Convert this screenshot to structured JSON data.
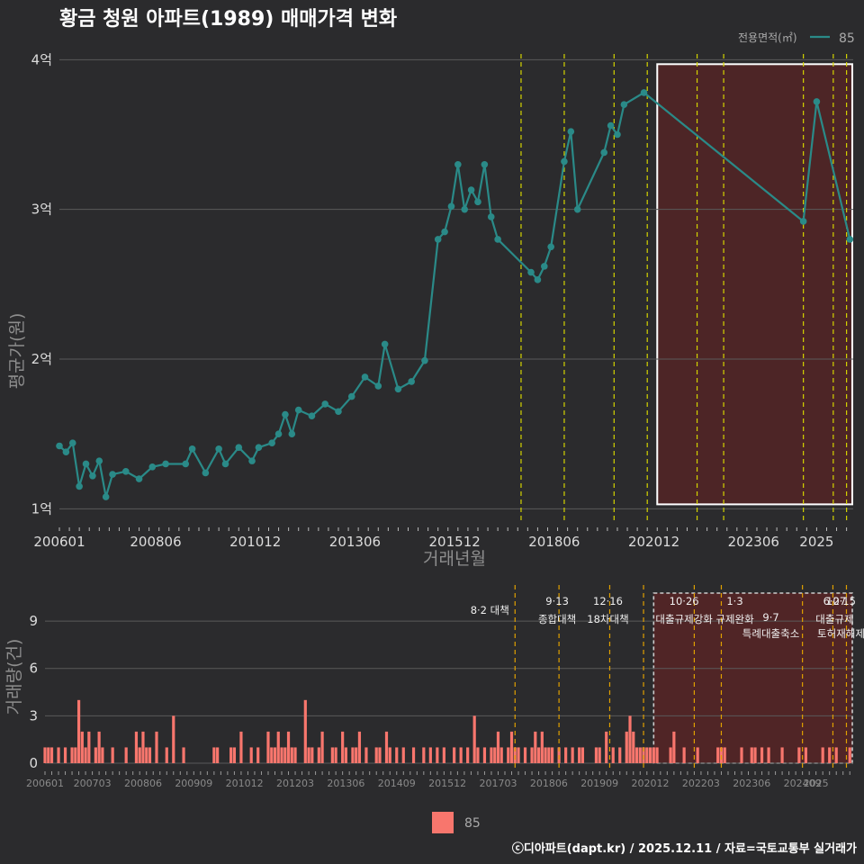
{
  "title": "황금 청원 아파트(1989) 매매가격 변화",
  "footer": "ⓒ디아파트(dapt.kr) / 2025.12.11 / 자료=국토교통부 실거래가",
  "colors": {
    "background": "#2b2b2d",
    "price_line": "#2a8a88",
    "volume_bar": "#f8766d",
    "policy_line_top": "#d4d400",
    "policy_line_bottom": "#e0a000",
    "highlight_fill": "#5a2424",
    "grid": "#5a5a5a"
  },
  "chart_data": [
    {
      "type": "line",
      "title": "황금 청원 아파트(1989) 매매가격 변화",
      "xlabel": "거래년월",
      "ylabel": "평균가(원)",
      "ylim": [
        0.9,
        4.05
      ],
      "x_range": [
        "2006-01",
        "2025-12"
      ],
      "x_ticks": [
        "200601",
        "200806",
        "201012",
        "201306",
        "201512",
        "201806",
        "202012",
        "202306",
        "2025"
      ],
      "y_ticks": [
        {
          "value": 1,
          "label": "1억"
        },
        {
          "value": 2,
          "label": "2억"
        },
        {
          "value": 3,
          "label": "3억"
        },
        {
          "value": 4,
          "label": "4억"
        }
      ],
      "legend": {
        "title": "전용면적(㎡)",
        "entries": [
          "85"
        ],
        "position": "top-right"
      },
      "policy_dates": [
        "2017-08",
        "2018-09",
        "2019-12",
        "2020-10",
        "2022-01",
        "2022-09",
        "2024-09",
        "2025-06",
        "2025-10"
      ],
      "highlight_range": [
        "2021-01",
        "2025-12"
      ],
      "series": [
        {
          "name": "85",
          "points": [
            [
              "2006-01",
              1.42
            ],
            [
              "2006-03",
              1.38
            ],
            [
              "2006-05",
              1.44
            ],
            [
              "2006-07",
              1.15
            ],
            [
              "2006-09",
              1.3
            ],
            [
              "2006-11",
              1.22
            ],
            [
              "2007-01",
              1.32
            ],
            [
              "2007-03",
              1.08
            ],
            [
              "2007-05",
              1.23
            ],
            [
              "2007-09",
              1.25
            ],
            [
              "2008-01",
              1.2
            ],
            [
              "2008-05",
              1.28
            ],
            [
              "2008-09",
              1.3
            ],
            [
              "2009-03",
              1.3
            ],
            [
              "2009-05",
              1.4
            ],
            [
              "2009-09",
              1.24
            ],
            [
              "2010-01",
              1.4
            ],
            [
              "2010-03",
              1.3
            ],
            [
              "2010-07",
              1.41
            ],
            [
              "2010-11",
              1.32
            ],
            [
              "2011-01",
              1.41
            ],
            [
              "2011-05",
              1.44
            ],
            [
              "2011-07",
              1.5
            ],
            [
              "2011-09",
              1.63
            ],
            [
              "2011-11",
              1.5
            ],
            [
              "2012-01",
              1.66
            ],
            [
              "2012-05",
              1.62
            ],
            [
              "2012-09",
              1.7
            ],
            [
              "2013-01",
              1.65
            ],
            [
              "2013-05",
              1.75
            ],
            [
              "2013-09",
              1.88
            ],
            [
              "2014-01",
              1.82
            ],
            [
              "2014-03",
              2.1
            ],
            [
              "2014-07",
              1.8
            ],
            [
              "2014-11",
              1.85
            ],
            [
              "2015-03",
              1.99
            ],
            [
              "2015-07",
              2.8
            ],
            [
              "2015-09",
              2.85
            ],
            [
              "2015-11",
              3.02
            ],
            [
              "2016-01",
              3.3
            ],
            [
              "2016-03",
              3.0
            ],
            [
              "2016-05",
              3.13
            ],
            [
              "2016-07",
              3.05
            ],
            [
              "2016-09",
              3.3
            ],
            [
              "2016-11",
              2.95
            ],
            [
              "2017-01",
              2.8
            ],
            [
              "2017-11",
              2.58
            ],
            [
              "2018-01",
              2.53
            ],
            [
              "2018-03",
              2.62
            ],
            [
              "2018-05",
              2.75
            ],
            [
              "2018-09",
              3.32
            ],
            [
              "2018-11",
              3.52
            ],
            [
              "2019-01",
              3.0
            ],
            [
              "2019-09",
              3.38
            ],
            [
              "2019-11",
              3.56
            ],
            [
              "2020-01",
              3.5
            ],
            [
              "2020-03",
              3.7
            ],
            [
              "2020-09",
              3.78
            ],
            [
              "2024-09",
              2.92
            ],
            [
              "2025-01",
              3.72
            ],
            [
              "2025-11",
              2.8
            ]
          ]
        }
      ]
    },
    {
      "type": "bar",
      "xlabel": "",
      "ylabel": "거래량(건)",
      "ylim": [
        0,
        11
      ],
      "x_range": [
        "2006-01",
        "2025-12"
      ],
      "x_ticks": [
        "200601",
        "200703",
        "200806",
        "200909",
        "201012",
        "201203",
        "201306",
        "201409",
        "201512",
        "201703",
        "201806",
        "201909",
        "202012",
        "202203",
        "202306",
        "202409",
        "2025"
      ],
      "y_ticks": [
        0,
        3,
        6,
        9
      ],
      "legend": {
        "entries": [
          "85"
        ],
        "position": "bottom"
      },
      "highlight_range": [
        "2021-01",
        "2025-12"
      ],
      "series": [
        {
          "name": "85",
          "bars": [
            [
              "2006-01",
              1
            ],
            [
              "2006-02",
              1
            ],
            [
              "2006-03",
              1
            ],
            [
              "2006-05",
              1
            ],
            [
              "2006-07",
              1
            ],
            [
              "2006-09",
              1
            ],
            [
              "2006-10",
              1
            ],
            [
              "2006-11",
              4
            ],
            [
              "2006-12",
              2
            ],
            [
              "2007-01",
              1
            ],
            [
              "2007-02",
              2
            ],
            [
              "2007-04",
              1
            ],
            [
              "2007-05",
              2
            ],
            [
              "2007-06",
              1
            ],
            [
              "2007-09",
              1
            ],
            [
              "2008-01",
              1
            ],
            [
              "2008-04",
              2
            ],
            [
              "2008-05",
              1
            ],
            [
              "2008-06",
              2
            ],
            [
              "2008-07",
              1
            ],
            [
              "2008-08",
              1
            ],
            [
              "2008-10",
              2
            ],
            [
              "2009-01",
              1
            ],
            [
              "2009-03",
              3
            ],
            [
              "2009-06",
              1
            ],
            [
              "2010-03",
              1
            ],
            [
              "2010-04",
              1
            ],
            [
              "2010-08",
              1
            ],
            [
              "2010-09",
              1
            ],
            [
              "2010-11",
              2
            ],
            [
              "2011-02",
              1
            ],
            [
              "2011-04",
              1
            ],
            [
              "2011-07",
              2
            ],
            [
              "2011-08",
              1
            ],
            [
              "2011-09",
              1
            ],
            [
              "2011-10",
              2
            ],
            [
              "2011-11",
              1
            ],
            [
              "2011-12",
              1
            ],
            [
              "2012-01",
              2
            ],
            [
              "2012-02",
              1
            ],
            [
              "2012-03",
              1
            ],
            [
              "2012-06",
              4
            ],
            [
              "2012-07",
              1
            ],
            [
              "2012-08",
              1
            ],
            [
              "2012-10",
              1
            ],
            [
              "2012-11",
              2
            ],
            [
              "2013-02",
              1
            ],
            [
              "2013-03",
              1
            ],
            [
              "2013-05",
              2
            ],
            [
              "2013-06",
              1
            ],
            [
              "2013-08",
              1
            ],
            [
              "2013-09",
              1
            ],
            [
              "2013-10",
              2
            ],
            [
              "2013-12",
              1
            ],
            [
              "2014-03",
              1
            ],
            [
              "2014-04",
              1
            ],
            [
              "2014-06",
              2
            ],
            [
              "2014-07",
              1
            ],
            [
              "2014-09",
              1
            ],
            [
              "2014-11",
              1
            ],
            [
              "2015-02",
              1
            ],
            [
              "2015-05",
              1
            ],
            [
              "2015-07",
              1
            ],
            [
              "2015-09",
              1
            ],
            [
              "2015-11",
              1
            ],
            [
              "2016-02",
              1
            ],
            [
              "2016-04",
              1
            ],
            [
              "2016-06",
              1
            ],
            [
              "2016-08",
              3
            ],
            [
              "2016-09",
              1
            ],
            [
              "2016-11",
              1
            ],
            [
              "2017-01",
              1
            ],
            [
              "2017-02",
              1
            ],
            [
              "2017-03",
              2
            ],
            [
              "2017-04",
              1
            ],
            [
              "2017-06",
              1
            ],
            [
              "2017-07",
              2
            ],
            [
              "2017-08",
              1
            ],
            [
              "2017-09",
              1
            ],
            [
              "2017-11",
              1
            ],
            [
              "2018-01",
              1
            ],
            [
              "2018-02",
              2
            ],
            [
              "2018-03",
              1
            ],
            [
              "2018-04",
              2
            ],
            [
              "2018-05",
              1
            ],
            [
              "2018-06",
              1
            ],
            [
              "2018-07",
              1
            ],
            [
              "2018-09",
              1
            ],
            [
              "2018-11",
              1
            ],
            [
              "2019-01",
              1
            ],
            [
              "2019-03",
              1
            ],
            [
              "2019-04",
              1
            ],
            [
              "2019-08",
              1
            ],
            [
              "2019-09",
              1
            ],
            [
              "2019-11",
              2
            ],
            [
              "2020-01",
              1
            ],
            [
              "2020-03",
              1
            ],
            [
              "2020-05",
              2
            ],
            [
              "2020-06",
              3
            ],
            [
              "2020-07",
              2
            ],
            [
              "2020-08",
              1
            ],
            [
              "2020-09",
              1
            ],
            [
              "2020-10",
              1
            ],
            [
              "2020-11",
              1
            ],
            [
              "2020-12",
              1
            ],
            [
              "2021-01",
              1
            ],
            [
              "2021-02",
              1
            ],
            [
              "2021-06",
              1
            ],
            [
              "2021-07",
              2
            ],
            [
              "2021-10",
              1
            ],
            [
              "2022-02",
              1
            ],
            [
              "2022-08",
              1
            ],
            [
              "2022-09",
              1
            ],
            [
              "2022-10",
              1
            ],
            [
              "2023-03",
              1
            ],
            [
              "2023-06",
              1
            ],
            [
              "2023-07",
              1
            ],
            [
              "2023-09",
              1
            ],
            [
              "2023-11",
              1
            ],
            [
              "2024-03",
              1
            ],
            [
              "2024-08",
              1
            ],
            [
              "2024-10",
              1
            ],
            [
              "2025-03",
              1
            ],
            [
              "2025-05",
              1
            ],
            [
              "2025-07",
              1
            ],
            [
              "2025-11",
              1
            ]
          ]
        }
      ],
      "annotations": [
        {
          "date": "2017-08",
          "lines": [
            "8·2 대책"
          ]
        },
        {
          "date": "2018-09",
          "lines": [
            "9·13",
            "종합대책"
          ]
        },
        {
          "date": "2019-12",
          "lines": [
            "12·16",
            "18차대책"
          ]
        },
        {
          "date": "2021-10",
          "lines": [
            "10·26",
            "대출규제강화"
          ]
        },
        {
          "date": "2023-01",
          "lines": [
            "1·3",
            "규제완화"
          ]
        },
        {
          "date": "2023-09",
          "lines": [
            "9·7",
            "특례대출축소"
          ]
        },
        {
          "date": "2025-06",
          "lines": [
            "6·27",
            "대출규제"
          ]
        },
        {
          "date": "2025-10",
          "lines": [
            "10·15",
            "토허재해제"
          ]
        }
      ]
    }
  ]
}
